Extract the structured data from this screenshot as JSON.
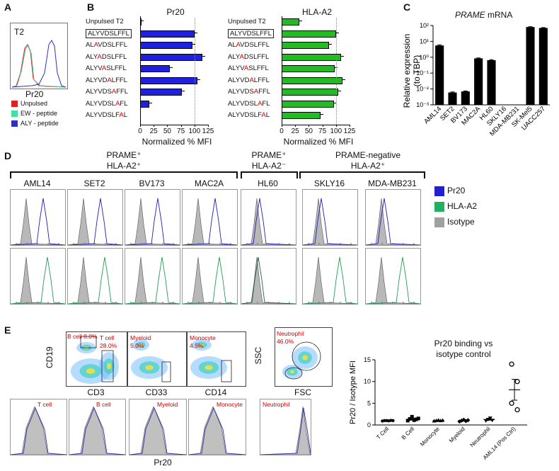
{
  "panels": {
    "A": {
      "label": "A",
      "hist_title": "T2",
      "xlabel": "Pr20",
      "legend": [
        {
          "label": "Unpulsed",
          "color": "#e02020"
        },
        {
          "label": "EW - peptide",
          "color": "#40e0a0"
        },
        {
          "label": "ALY - peptide",
          "color": "#3030c0"
        }
      ]
    },
    "B": {
      "label": "B",
      "xlabel": "Normalized % MFI",
      "ticks": [
        "0",
        "25",
        "50",
        "75",
        "100",
        "125"
      ],
      "peptides": [
        {
          "pre": "Unpulsed T2",
          "mut": "",
          "post": "",
          "boxed": false
        },
        {
          "pre": "ALYVDSLFFL",
          "mut": "",
          "post": "",
          "boxed": true
        },
        {
          "pre": "AL",
          "mut": "A",
          "post": "VDSLFFL",
          "boxed": false
        },
        {
          "pre": "ALY",
          "mut": "A",
          "post": "DSLFFL",
          "boxed": false
        },
        {
          "pre": "ALYV",
          "mut": "A",
          "post": "SLFFL",
          "boxed": false
        },
        {
          "pre": "ALYVD",
          "mut": "A",
          "post": "LFFL",
          "boxed": false
        },
        {
          "pre": "ALYVDS",
          "mut": "A",
          "post": "FFL",
          "boxed": false
        },
        {
          "pre": "ALYVDSL",
          "mut": "A",
          "post": "FL",
          "boxed": false
        },
        {
          "pre": "ALYVDSLF",
          "mut": "A",
          "post": "L",
          "boxed": false
        }
      ],
      "charts": [
        {
          "title": "Pr20",
          "color": "#2020e0",
          "values": [
            1,
            100,
            97,
            115,
            55,
            106,
            77,
            17,
            0
          ]
        },
        {
          "title": "HLA-A2",
          "color": "#22bb22",
          "values": [
            32,
            100,
            87,
            110,
            98,
            112,
            104,
            96,
            72
          ]
        }
      ]
    },
    "C": {
      "label": "C",
      "title_gene": "PRAME",
      "title_rest": " mRNA",
      "ylabel": "Relative expression",
      "ylabel2": "(to TBP)"
    },
    "D": {
      "label": "D",
      "groups": [
        {
          "line1": "PRAME⁺",
          "line2": "HLA-A2⁺"
        },
        {
          "line1": "PRAME⁺",
          "line2": "HLA-A2⁻"
        },
        {
          "line1": "PRAME-negative",
          "line2": "HLA-A2⁺"
        }
      ],
      "cells": [
        "AML14",
        "SET2",
        "BV173",
        "MAC2A",
        "HL60",
        "SKLY16",
        "MDA-MB231"
      ],
      "legend": [
        {
          "label": "Pr20",
          "color": "#2020d0"
        },
        {
          "label": "HLA-A2",
          "color": "#20b060"
        },
        {
          "label": "Isotype",
          "color": "#a0a0a0"
        }
      ]
    },
    "E": {
      "label": "E",
      "flow": [
        {
          "ylabel": "CD19",
          "xlabel": "CD3",
          "gates": [
            {
              "text": "B cell 8.0%"
            },
            {
              "text": "T cell\n28.0%"
            }
          ]
        },
        {
          "ylabel": "",
          "xlabel": "CD33",
          "gates": [
            {
              "text": "Myeloid\n5.0%"
            }
          ]
        },
        {
          "ylabel": "",
          "xlabel": "CD14",
          "gates": [
            {
              "text": "Monocyte\n4.5%"
            }
          ]
        },
        {
          "ylabel": "SSC",
          "xlabel": "FSC",
          "gates": [
            {
              "text": "Neutrophil\n46.0%"
            }
          ]
        }
      ],
      "hist_labels": [
        "T cell",
        "B cell",
        "Myeloid",
        "Monocyte",
        "Neutrophil"
      ],
      "hist_xlabel": "Pr20"
    }
  },
  "chart_data": [
    {
      "type": "bar",
      "title": "PRAME mRNA",
      "ylabel": "Relative expression (to TBP)",
      "yscale": "log",
      "ylim": [
        0.001,
        100
      ],
      "yticks": [
        "10⁻³",
        "10⁻²",
        "10⁻¹",
        "10⁰",
        "10¹",
        "10²"
      ],
      "categories": [
        "AML14",
        "SET2",
        "BV173",
        "MAC2A",
        "HL60",
        "SKLY16",
        "MDA-MB231",
        "SK-Mel5",
        "UACC257"
      ],
      "values": [
        5.5,
        0.006,
        0.007,
        0.85,
        0.65,
        0,
        0,
        80,
        70
      ],
      "errors": [
        0.5,
        0.0005,
        0.0005,
        0.05,
        0.05,
        0,
        0,
        4,
        4
      ]
    },
    {
      "type": "scatter",
      "title": "Pr20 binding vs isotype control",
      "ylabel": "Pr20 / Isotype MFI",
      "ylim": [
        0,
        15
      ],
      "yticks": [
        "0",
        "5",
        "10",
        "15"
      ],
      "categories": [
        "T Cell",
        "B Cell",
        "Monocyte",
        "Myeloid",
        "Neutrophil",
        "AML14 (Pos Ctrl)"
      ],
      "markers": [
        "circle",
        "square",
        "triangle",
        "diamond",
        "tri-down",
        "open-circle"
      ],
      "points": [
        [
          0.9,
          1.0,
          1.0,
          0.95,
          1.05,
          1.0
        ],
        [
          1.0,
          1.4,
          1.9,
          1.1,
          1.3,
          1.5
        ],
        [
          0.9,
          1.0,
          1.1,
          0.95,
          1.05
        ],
        [
          0.8,
          1.0,
          1.2,
          0.9,
          1.1
        ],
        [
          1.0,
          1.3,
          1.6,
          1.1
        ],
        [
          14,
          10,
          5,
          3.5
        ]
      ],
      "means": [
        1.0,
        1.35,
        1.0,
        1.0,
        1.25,
        8.1
      ],
      "sem": [
        0.03,
        0.2,
        0.05,
        0.07,
        0.15,
        2.4
      ]
    }
  ]
}
